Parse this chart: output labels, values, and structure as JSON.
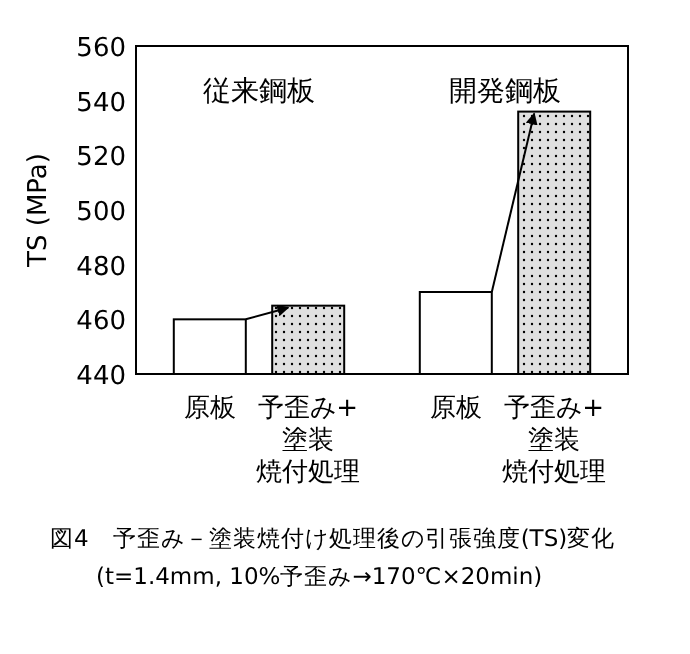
{
  "chart_data": {
    "type": "bar",
    "title": "図4　予歪み－塗装焼付け処理後の引張強度(TS)変化",
    "subtitle": "(t=1.4mm, 10%予歪み→170℃×20min)",
    "ylabel": "TS (MPa)",
    "categories": [
      "原板",
      "予歪み+塗装焼付処理",
      "原板",
      "予歪み+塗装焼付処理"
    ],
    "values": [
      460,
      465,
      470,
      536
    ],
    "colors": [
      "#ffffff",
      "#e0e0e0",
      "#ffffff",
      "#e0e0e0"
    ],
    "ylim": [
      440,
      560
    ],
    "yticks": [
      440,
      460,
      480,
      500,
      520,
      540,
      560
    ],
    "annotations": [
      "従来鋼板",
      "開発鋼板"
    ],
    "grid": false
  }
}
